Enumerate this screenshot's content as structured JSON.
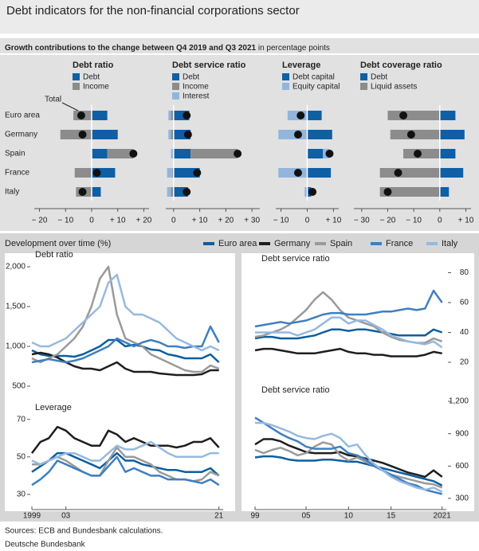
{
  "title": "Debt indicators for the non-financial corporations sector",
  "section_1": {
    "title": "Growth contributions to the change between Q4 2019 and Q3 2021",
    "unit": "in percentage points",
    "total_label": "Total"
  },
  "section_2": {
    "title": "Development over time (%)"
  },
  "sources": "Sources: ECB and Bundesbank calculations.",
  "footer": "Deutsche Bundesbank",
  "chart_data": [
    {
      "type": "hbar",
      "title": "Debt ratio",
      "categories": [
        "Euro area",
        "Germany",
        "Spain",
        "France",
        "Italy"
      ],
      "xlim": [
        -22,
        22
      ],
      "xticks": [
        {
          "value": -20,
          "label": "− 20"
        },
        {
          "value": -10,
          "label": "− 10"
        },
        0,
        {
          "value": 10,
          "label": "+ 10"
        },
        {
          "value": 20,
          "label": "+ 20"
        }
      ],
      "series": [
        {
          "name": "Debt",
          "color": "#0f5fa5",
          "values": [
            6,
            10,
            6,
            9,
            3.5
          ]
        },
        {
          "name": "Income",
          "color": "#8c8c8c",
          "values": [
            -7,
            -12,
            10,
            -6.5,
            -6
          ]
        }
      ],
      "totals": [
        -4,
        -3.5,
        16,
        2,
        -3.5
      ]
    },
    {
      "type": "hbar",
      "title": "Debt service ratio",
      "xlim": [
        -3,
        33
      ],
      "xticks": [
        0,
        {
          "value": 10,
          "label": "+ 10"
        },
        {
          "value": 20,
          "label": "+ 20"
        },
        {
          "value": 30,
          "label": "+ 30"
        }
      ],
      "series": [
        {
          "name": "Debt",
          "color": "#0f5fa5",
          "values": [
            6,
            6.5,
            6.5,
            10,
            5.5
          ]
        },
        {
          "name": "Income",
          "color": "#8c8c8c",
          "values": [
            -1,
            -1,
            18,
            -0.5,
            -1
          ]
        },
        {
          "name": "Interest",
          "color": "#92b5de",
          "values": [
            -1,
            -1,
            -1,
            -2,
            -1.5
          ]
        }
      ],
      "totals": [
        5,
        5.5,
        24.5,
        9,
        5
      ]
    },
    {
      "type": "hbar",
      "title": "Leverage",
      "xlim": [
        -12,
        12
      ],
      "xticks": [
        {
          "value": -10,
          "label": "− 10"
        },
        0,
        {
          "value": 10,
          "label": "+ 10"
        }
      ],
      "series": [
        {
          "name": "Debt capital",
          "color": "#0f5fa5",
          "values": [
            5.5,
            9.5,
            6,
            9,
            1.5
          ]
        },
        {
          "name": "Equity capital",
          "color": "#92b5de",
          "values": [
            -7.5,
            -11,
            2.5,
            -11,
            -1
          ]
        }
      ],
      "totals": [
        -2.5,
        -3.5,
        8.5,
        -3.5,
        2
      ]
    },
    {
      "type": "hbar",
      "title": "Debt coverage ratio",
      "xlim": [
        -33,
        12
      ],
      "xticks": [
        {
          "value": -30,
          "label": "− 30"
        },
        {
          "value": -20,
          "label": "− 20"
        },
        {
          "value": -10,
          "label": "− 10"
        },
        0,
        {
          "value": 10,
          "label": "+ 10"
        }
      ],
      "series": [
        {
          "name": "Debt",
          "color": "#0f5fa5",
          "values": [
            6,
            9.5,
            6,
            9,
            3.5
          ]
        },
        {
          "name": "Liquid assets",
          "color": "#8c8c8c",
          "values": [
            -20,
            -19,
            -14,
            -23,
            -23
          ]
        }
      ],
      "totals": [
        -14,
        -11,
        -8.5,
        -16,
        -20
      ]
    },
    {
      "type": "line",
      "title": "Debt ratio",
      "x": [
        1999,
        2000,
        2001,
        2002,
        2003,
        2004,
        2005,
        2006,
        2007,
        2008,
        2009,
        2010,
        2011,
        2012,
        2013,
        2014,
        2015,
        2016,
        2017,
        2018,
        2019,
        2020,
        2021
      ],
      "xlim": [
        1999,
        2021.5
      ],
      "ylim": [
        450,
        2050
      ],
      "yticks": [
        500,
        {
          "value": 1000,
          "label": "1,000"
        },
        {
          "value": 1500,
          "label": "1,500"
        },
        {
          "value": 2000,
          "label": "2,000"
        }
      ],
      "series": [
        {
          "name": "Euro area",
          "color": "#0d5e9f",
          "values": [
            950,
            900,
            880,
            880,
            880,
            870,
            900,
            950,
            1000,
            1080,
            1080,
            1000,
            1020,
            1000,
            960,
            950,
            900,
            880,
            850,
            850,
            850,
            900,
            800
          ]
        },
        {
          "name": "Germany",
          "color": "#1e1e1e",
          "values": [
            900,
            920,
            900,
            860,
            800,
            750,
            720,
            720,
            700,
            750,
            800,
            720,
            680,
            680,
            680,
            660,
            650,
            640,
            640,
            640,
            650,
            700,
            700
          ]
        },
        {
          "name": "Spain",
          "color": "#9a9a9a",
          "values": [
            850,
            800,
            850,
            900,
            1000,
            1100,
            1250,
            1500,
            1850,
            2000,
            1400,
            1100,
            1050,
            1000,
            900,
            850,
            800,
            750,
            700,
            680,
            680,
            760,
            720
          ]
        },
        {
          "name": "France",
          "color": "#3f7fc0",
          "values": [
            800,
            820,
            840,
            820,
            800,
            820,
            850,
            900,
            950,
            1000,
            1100,
            1050,
            1000,
            1050,
            1080,
            1050,
            1000,
            1000,
            980,
            1000,
            1000,
            1250,
            1050
          ]
        },
        {
          "name": "Italy",
          "color": "#96b9e0",
          "values": [
            1050,
            1000,
            1000,
            1050,
            1100,
            1200,
            1300,
            1400,
            1500,
            1800,
            1900,
            1500,
            1400,
            1400,
            1350,
            1300,
            1200,
            1100,
            1050,
            1000,
            950,
            1000,
            950
          ]
        }
      ]
    },
    {
      "type": "line",
      "title": "Leverage",
      "x": [
        1999,
        2000,
        2001,
        2002,
        2003,
        2004,
        2005,
        2006,
        2007,
        2008,
        2009,
        2010,
        2011,
        2012,
        2013,
        2014,
        2015,
        2016,
        2017,
        2018,
        2019,
        2020,
        2021
      ],
      "xlim": [
        1999,
        2021.5
      ],
      "ylim": [
        27,
        72
      ],
      "yticks": [
        30,
        50,
        70
      ],
      "xticks": [
        1999,
        {
          "value": 2003,
          "label": "03"
        },
        {
          "value": 2021,
          "label": "21"
        }
      ],
      "series": [
        {
          "values": [
            42,
            45,
            48,
            52,
            52,
            50,
            48,
            46,
            44,
            48,
            52,
            48,
            48,
            46,
            45,
            44,
            43,
            43,
            42,
            42,
            42,
            44,
            40
          ]
        },
        {
          "values": [
            52,
            58,
            60,
            66,
            64,
            60,
            58,
            56,
            56,
            64,
            62,
            58,
            60,
            58,
            56,
            56,
            56,
            55,
            56,
            58,
            58,
            60,
            55
          ]
        },
        {
          "values": [
            46,
            46,
            48,
            50,
            48,
            45,
            42,
            40,
            40,
            48,
            55,
            50,
            50,
            48,
            46,
            42,
            40,
            38,
            38,
            37,
            38,
            42,
            40
          ]
        },
        {
          "values": [
            35,
            38,
            42,
            48,
            46,
            44,
            42,
            40,
            40,
            45,
            50,
            42,
            44,
            42,
            40,
            40,
            38,
            38,
            38,
            37,
            36,
            38,
            35
          ]
        },
        {
          "values": [
            48,
            46,
            48,
            50,
            52,
            52,
            50,
            48,
            48,
            52,
            56,
            54,
            54,
            56,
            58,
            55,
            52,
            50,
            50,
            50,
            50,
            52,
            52
          ]
        }
      ]
    },
    {
      "type": "line",
      "title": "Debt service ratio",
      "x": [
        1999,
        2000,
        2001,
        2002,
        2003,
        2004,
        2005,
        2006,
        2007,
        2008,
        2009,
        2010,
        2011,
        2012,
        2013,
        2014,
        2015,
        2016,
        2017,
        2018,
        2019,
        2020,
        2021
      ],
      "xlim": [
        1999,
        2021.5
      ],
      "ylim": [
        12,
        84
      ],
      "yticks": [
        20,
        40,
        60,
        80
      ],
      "series": [
        {
          "values": [
            36,
            37,
            37,
            36,
            36,
            36,
            37,
            38,
            40,
            42,
            42,
            41,
            42,
            42,
            41,
            40,
            39,
            38,
            38,
            38,
            38,
            42,
            40
          ]
        },
        {
          "values": [
            28,
            29,
            29,
            28,
            27,
            26,
            26,
            26,
            27,
            28,
            29,
            27,
            26,
            26,
            25,
            25,
            24,
            24,
            24,
            24,
            25,
            27,
            26
          ]
        },
        {
          "values": [
            37,
            38,
            40,
            42,
            45,
            50,
            55,
            62,
            67,
            62,
            55,
            50,
            48,
            46,
            44,
            40,
            37,
            35,
            34,
            33,
            33,
            36,
            34
          ]
        },
        {
          "values": [
            44,
            45,
            46,
            47,
            46,
            47,
            48,
            50,
            52,
            53,
            53,
            52,
            52,
            52,
            53,
            54,
            54,
            55,
            56,
            55,
            56,
            68,
            60
          ]
        },
        {
          "values": [
            40,
            40,
            40,
            40,
            40,
            38,
            40,
            42,
            46,
            50,
            50,
            46,
            48,
            48,
            45,
            42,
            38,
            36,
            34,
            33,
            32,
            34,
            30
          ]
        }
      ]
    },
    {
      "type": "line",
      "title": "Debt service ratio",
      "x": [
        1999,
        2000,
        2001,
        2002,
        2003,
        2004,
        2005,
        2006,
        2007,
        2008,
        2009,
        2010,
        2011,
        2012,
        2013,
        2014,
        2015,
        2016,
        2017,
        2018,
        2019,
        2020,
        2021
      ],
      "xlim": [
        1999,
        2021.5
      ],
      "ylim": [
        270,
        1230
      ],
      "yticks": [
        300,
        600,
        900,
        {
          "value": 1200,
          "label": "1,200"
        }
      ],
      "xticks": [
        {
          "value": 1999,
          "label": "99"
        },
        {
          "value": 2005,
          "label": "05"
        },
        {
          "value": 2010,
          "label": "10"
        },
        {
          "value": 2015,
          "label": "15"
        },
        2021
      ],
      "series": [
        {
          "values": [
            680,
            690,
            690,
            680,
            660,
            650,
            650,
            650,
            660,
            660,
            650,
            640,
            640,
            620,
            600,
            580,
            560,
            540,
            520,
            500,
            480,
            460,
            420
          ]
        },
        {
          "values": [
            800,
            850,
            850,
            830,
            790,
            760,
            730,
            720,
            720,
            720,
            730,
            700,
            690,
            670,
            650,
            630,
            600,
            570,
            540,
            520,
            500,
            560,
            500
          ]
        },
        {
          "values": [
            750,
            720,
            750,
            770,
            740,
            700,
            720,
            780,
            820,
            800,
            700,
            650,
            680,
            640,
            600,
            560,
            520,
            500,
            480,
            460,
            440,
            430,
            400
          ]
        },
        {
          "values": [
            1050,
            1000,
            950,
            900,
            860,
            830,
            780,
            760,
            760,
            760,
            780,
            720,
            700,
            660,
            600,
            560,
            520,
            480,
            440,
            420,
            380,
            360,
            340
          ]
        },
        {
          "values": [
            1000,
            1000,
            980,
            950,
            920,
            880,
            860,
            850,
            880,
            900,
            860,
            780,
            800,
            700,
            620,
            560,
            500,
            460,
            430,
            400,
            380,
            400,
            360
          ]
        }
      ]
    }
  ]
}
